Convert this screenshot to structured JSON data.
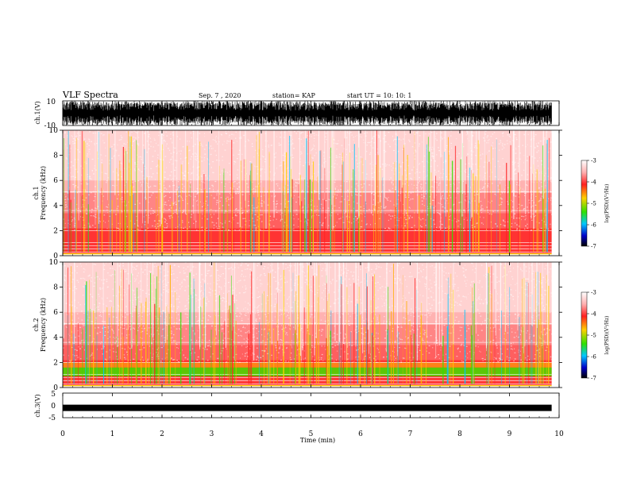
{
  "header": {
    "title": "VLF Spectra",
    "date": "Sep. 7 , 2020",
    "station": "station= KAP",
    "start_ut": "start UT =   10: 10: 1"
  },
  "colors": {
    "spectrogram": [
      "#ffffff",
      "#ff2020",
      "#ffd000",
      "#30e000",
      "#00c8ff",
      "#0000c8",
      "#000000"
    ],
    "waveform": "#000000"
  },
  "chart_data": [
    {
      "type": "line",
      "name": "ch1-waveform",
      "ylabel": "ch.1(V)",
      "ylim": [
        -10,
        10
      ],
      "yticks": [
        "10",
        "-10"
      ],
      "xlim": [
        0,
        10
      ],
      "description_values": {
        "amplitude_range": [
          -10,
          10
        ]
      }
    },
    {
      "type": "heatmap",
      "name": "ch1-spectrogram",
      "ylabel": "ch.1\nFrequency (kHz)",
      "ylabel_lines": [
        "ch.1",
        "Frequency (kHz)"
      ],
      "ylim": [
        0,
        10
      ],
      "yticks": [
        "0",
        "2",
        "4",
        "6",
        "8",
        "10"
      ],
      "xlim": [
        0,
        9.85
      ],
      "colorbar": {
        "label": "log(PSD)(V²/Hz)",
        "range": [
          -7,
          -3
        ],
        "ticks": [
          "-3",
          "-4",
          "-5",
          "-6",
          "-7"
        ]
      }
    },
    {
      "type": "heatmap",
      "name": "ch2-spectrogram",
      "ylabel": "ch.2\nFrequency (kHz)",
      "ylabel_lines": [
        "ch.2",
        "Frequency (kHz)"
      ],
      "ylim": [
        0,
        10
      ],
      "yticks": [
        "0",
        "2",
        "4",
        "6",
        "8",
        "10"
      ],
      "xlim": [
        0,
        9.85
      ],
      "colorbar": {
        "label": "log(PSD)(V²/Hz)",
        "range": [
          -7,
          -3
        ],
        "ticks": [
          "-3",
          "-4",
          "-5",
          "-6",
          "-7"
        ]
      }
    },
    {
      "type": "line",
      "name": "ch3-waveform",
      "ylabel": "ch.3(V)",
      "ylim": [
        -5,
        5
      ],
      "yticks": [
        "5",
        "0",
        "-5"
      ],
      "xlim": [
        0,
        10
      ],
      "description_values": {
        "mean": -1,
        "amplitude_range": [
          -1.5,
          -0.5
        ]
      }
    }
  ],
  "xaxis": {
    "label": "Time (min)",
    "ticks": [
      "0",
      "1",
      "2",
      "3",
      "4",
      "5",
      "6",
      "7",
      "8",
      "9",
      "10"
    ]
  }
}
